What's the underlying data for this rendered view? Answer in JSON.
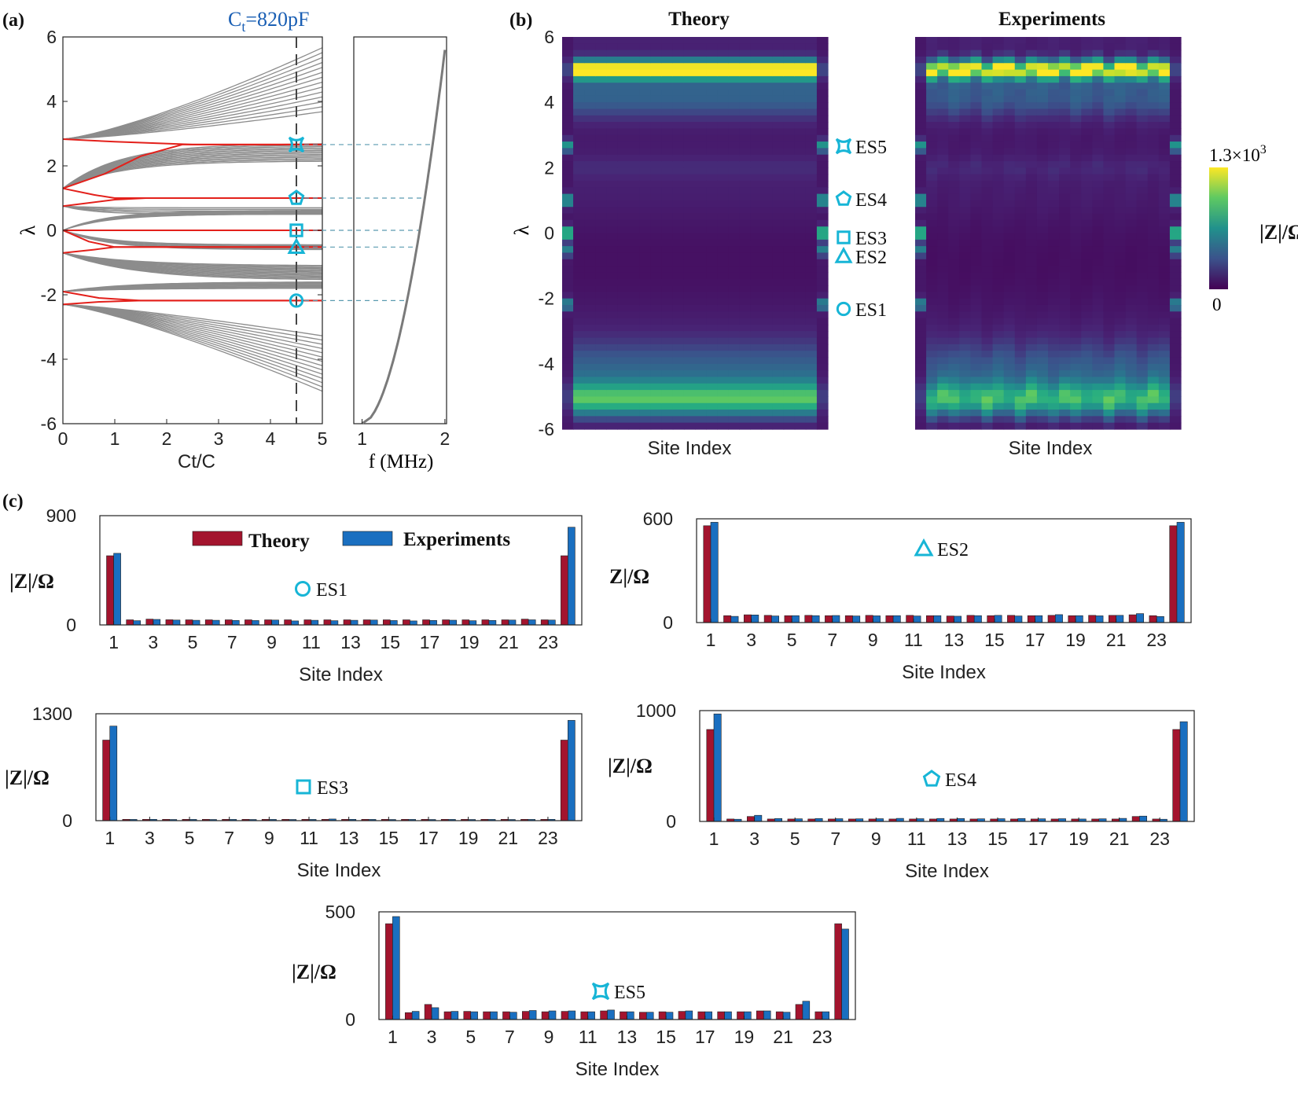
{
  "panels": {
    "a": "(a)",
    "b": "(b)",
    "c": "(c)"
  },
  "panel_a": {
    "ct_label_main": "C",
    "ct_label_sub": "t",
    "ct_label_rest": "=820pF",
    "xlabel": "Ct/C",
    "ylabel": "λ",
    "xticks": [
      0,
      1,
      2,
      3,
      4,
      5
    ],
    "yticks": [
      -6,
      -4,
      -2,
      0,
      2,
      4,
      6
    ],
    "xlim": [
      0,
      5
    ],
    "ylim": [
      -6,
      6
    ],
    "ct_ratio": 4.5,
    "markers": [
      {
        "shape": "star",
        "lambda": 2.66
      },
      {
        "shape": "pentagon",
        "lambda": 1.0
      },
      {
        "shape": "square",
        "lambda": 0.0
      },
      {
        "shape": "triangle",
        "lambda": -0.52
      },
      {
        "shape": "circle",
        "lambda": -2.18
      }
    ],
    "freq_xlabel": "f (MHz)",
    "freq_xticks": [
      1,
      2
    ]
  },
  "panel_b": {
    "theory_title": "Theory",
    "exp_title": "Experiments",
    "xlabel": "Site Index",
    "ylabel": "λ",
    "yticks": [
      -6,
      -4,
      -2,
      0,
      2,
      4,
      6
    ],
    "es_labels": [
      {
        "shape": "star",
        "label": "ES5"
      },
      {
        "shape": "pentagon",
        "label": "ES4"
      },
      {
        "shape": "square",
        "label": "ES3"
      },
      {
        "shape": "triangle",
        "label": "ES2"
      },
      {
        "shape": "circle",
        "label": "ES1"
      }
    ],
    "colorbar": {
      "max_main": "1.3×10",
      "max_exp": "3",
      "min": "0",
      "label": "|Z|/Ω"
    }
  },
  "panel_c": {
    "legend": {
      "theory": "Theory",
      "experiments": "Experiments"
    },
    "colors": {
      "theory": "#a3142e",
      "experiments": "#1a6fc0"
    },
    "xlabel": "Site Index",
    "xticks": [
      1,
      3,
      5,
      7,
      9,
      11,
      13,
      15,
      17,
      19,
      21,
      23
    ]
  },
  "chart_data": [
    {
      "type": "bar",
      "id": "ES1",
      "label": "ES1",
      "ylabel": "|Z|/Ω",
      "ylim": [
        0,
        900
      ],
      "yticks": [
        0,
        900
      ],
      "x": [
        1,
        2,
        3,
        4,
        5,
        6,
        7,
        8,
        9,
        10,
        11,
        12,
        13,
        14,
        15,
        16,
        17,
        18,
        19,
        20,
        21,
        22,
        23,
        24
      ],
      "series": [
        {
          "name": "Theory",
          "values": [
            570,
            42,
            48,
            43,
            42,
            42,
            42,
            42,
            42,
            42,
            42,
            42,
            42,
            42,
            42,
            42,
            42,
            42,
            42,
            42,
            42,
            48,
            42,
            570
          ]
        },
        {
          "name": "Experiments",
          "values": [
            590,
            35,
            45,
            40,
            38,
            38,
            37,
            36,
            40,
            33,
            38,
            35,
            38,
            40,
            36,
            33,
            37,
            39,
            35,
            37,
            40,
            42,
            40,
            805
          ]
        }
      ]
    },
    {
      "type": "bar",
      "id": "ES2",
      "label": "ES2",
      "ylabel": "Z|/Ω",
      "ylim": [
        0,
        600
      ],
      "yticks": [
        0,
        600
      ],
      "x": [
        1,
        2,
        3,
        4,
        5,
        6,
        7,
        8,
        9,
        10,
        11,
        12,
        13,
        14,
        15,
        16,
        17,
        18,
        19,
        20,
        21,
        22,
        23,
        24
      ],
      "series": [
        {
          "name": "Theory",
          "values": [
            560,
            40,
            45,
            42,
            40,
            42,
            40,
            40,
            42,
            40,
            42,
            40,
            38,
            42,
            40,
            42,
            40,
            42,
            40,
            42,
            42,
            45,
            40,
            560
          ]
        },
        {
          "name": "Experiments",
          "values": [
            580,
            36,
            44,
            38,
            40,
            40,
            41,
            38,
            39,
            40,
            38,
            40,
            37,
            40,
            42,
            38,
            40,
            46,
            40,
            39,
            42,
            52,
            35,
            580
          ]
        }
      ]
    },
    {
      "type": "bar",
      "id": "ES3",
      "label": "ES3",
      "ylabel": "|Z|/Ω",
      "ylim": [
        0,
        1300
      ],
      "yticks": [
        0,
        1300
      ],
      "x": [
        1,
        2,
        3,
        4,
        5,
        6,
        7,
        8,
        9,
        10,
        11,
        12,
        13,
        14,
        15,
        16,
        17,
        18,
        19,
        20,
        21,
        22,
        23,
        24
      ],
      "series": [
        {
          "name": "Theory",
          "values": [
            980,
            16,
            16,
            16,
            16,
            16,
            16,
            16,
            16,
            16,
            16,
            16,
            16,
            16,
            16,
            16,
            16,
            16,
            16,
            16,
            16,
            16,
            16,
            980
          ]
        },
        {
          "name": "Experiments",
          "values": [
            1150,
            15,
            16,
            14,
            15,
            14,
            15,
            14,
            15,
            14,
            15,
            20,
            16,
            15,
            14,
            15,
            14,
            15,
            14,
            15,
            14,
            15,
            16,
            1220
          ]
        }
      ]
    },
    {
      "type": "bar",
      "id": "ES4",
      "label": "ES4",
      "ylabel": "|Z|/Ω",
      "ylim": [
        0,
        1000
      ],
      "yticks": [
        0,
        1000
      ],
      "x": [
        1,
        2,
        3,
        4,
        5,
        6,
        7,
        8,
        9,
        10,
        11,
        12,
        13,
        14,
        15,
        16,
        17,
        18,
        19,
        20,
        21,
        22,
        23,
        24
      ],
      "series": [
        {
          "name": "Theory",
          "values": [
            830,
            22,
            45,
            22,
            22,
            22,
            22,
            22,
            22,
            22,
            22,
            22,
            22,
            22,
            22,
            22,
            22,
            22,
            22,
            22,
            22,
            45,
            22,
            830
          ]
        },
        {
          "name": "Experiments",
          "values": [
            970,
            20,
            55,
            26,
            24,
            26,
            25,
            24,
            25,
            28,
            25,
            27,
            26,
            24,
            25,
            26,
            24,
            25,
            22,
            24,
            28,
            48,
            20,
            900
          ]
        }
      ]
    },
    {
      "type": "bar",
      "id": "ES5",
      "label": "ES5",
      "ylabel": "|Z|/Ω",
      "ylim": [
        0,
        500
      ],
      "yticks": [
        0,
        500
      ],
      "x": [
        1,
        2,
        3,
        4,
        5,
        6,
        7,
        8,
        9,
        10,
        11,
        12,
        13,
        14,
        15,
        16,
        17,
        18,
        19,
        20,
        21,
        22,
        23,
        24
      ],
      "series": [
        {
          "name": "Theory",
          "values": [
            445,
            32,
            70,
            36,
            38,
            36,
            36,
            38,
            36,
            38,
            36,
            40,
            36,
            34,
            36,
            38,
            36,
            36,
            36,
            40,
            36,
            70,
            36,
            445
          ]
        },
        {
          "name": "Experiments",
          "values": [
            478,
            38,
            55,
            38,
            36,
            36,
            34,
            42,
            40,
            40,
            36,
            44,
            36,
            34,
            34,
            40,
            36,
            36,
            36,
            40,
            34,
            85,
            36,
            420
          ]
        }
      ]
    }
  ]
}
